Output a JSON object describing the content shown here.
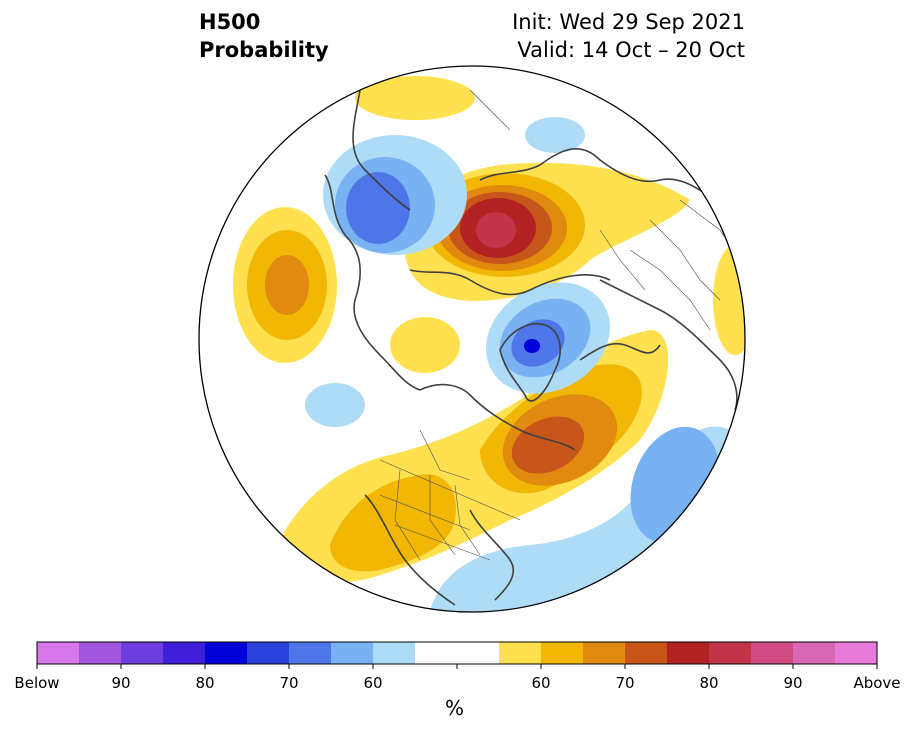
{
  "header": {
    "title_line1": "H500",
    "title_line2": "Probability",
    "init": "Init: Wed 29 Sep 2021",
    "valid": "Valid: 14 Oct – 20 Oct"
  },
  "colorbar": {
    "units": "%",
    "tick_labels": [
      "Below",
      "90",
      "80",
      "70",
      "60",
      "60",
      "70",
      "80",
      "90",
      "Above"
    ],
    "colors": [
      "#d678ea",
      "#a356e0",
      "#6e3ee0",
      "#3f20d8",
      "#0000d8",
      "#2a40dc",
      "#4f76e8",
      "#79b2f2",
      "#aedcf7",
      "#ffffff",
      "#ffe150",
      "#f2b705",
      "#e08a10",
      "#c8561a",
      "#b22222",
      "#c23548",
      "#cf4b82",
      "#d868b6",
      "#e87ada"
    ]
  },
  "map_layers": {
    "below_colors": {
      "c60": "#aedcf7",
      "c70": "#79b2f2",
      "c80": "#4f76e8",
      "c90": "#2a40dc",
      "cmax": "#0000d8"
    },
    "above_colors": {
      "c60": "#ffe150",
      "c70": "#f2b705",
      "c80": "#e08a10",
      "c90": "#c8561a",
      "c100": "#b22222",
      "cmax": "#c23548"
    }
  }
}
